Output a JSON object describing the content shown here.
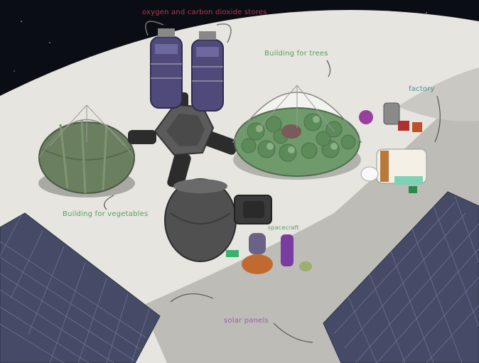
{
  "labels": {
    "oxygen": "oxygen and carbon dioxide stores",
    "trees": "Building for trees",
    "vegetables": "Building for vegetables",
    "factory": "factory",
    "spacecraft": "spacecraft",
    "solar": "solar panels"
  },
  "colors": {
    "space": "#0b0d14",
    "moon_surface": "#e6e5e0",
    "crater_floor": "#bdbcb7",
    "solar_panel": "#454b67",
    "module": "#5b5b5b",
    "tank": "#4f4a7a",
    "tree_dome": "#6f9a6b",
    "vegetable_dome": "#6a7f5f"
  }
}
